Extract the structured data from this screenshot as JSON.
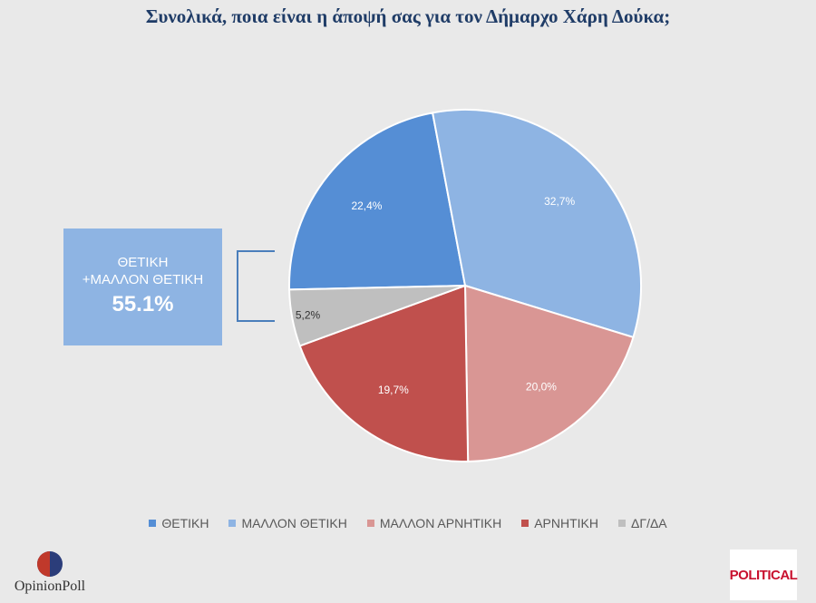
{
  "chart_data": {
    "type": "pie",
    "title": "Συνολικά, ποια είναι η άποψή σας για τον Δήμαρχο Χάρη Δούκα;",
    "slices": [
      {
        "name": "ΘΕΤΙΚΗ",
        "value": 22.4,
        "label": "22,4%",
        "color": "#558ed5"
      },
      {
        "name": "ΜΑΛΛΟΝ ΘΕΤΙΚΗ",
        "value": 32.7,
        "label": "32,7%",
        "color": "#8eb4e3"
      },
      {
        "name": "ΜΑΛΛΟΝ ΑΡΝΗΤΙΚΗ",
        "value": 20.0,
        "label": "20,0%",
        "color": "#d99694"
      },
      {
        "name": "ΑΡΝΗΤΙΚΗ",
        "value": 19.7,
        "label": "19,7%",
        "color": "#c0504d"
      },
      {
        "name": "ΔΓ/ΔΑ",
        "value": 5.2,
        "label": "5,2%",
        "color": "#bfbfbf"
      }
    ],
    "legend_position": "bottom",
    "annotation": {
      "label": "ΘΕΤΙΚΗ\n+ΜΑΛΛΟΝ ΘΕΤΙΚΗ",
      "value": "55.1%"
    }
  },
  "logos": {
    "left": "OpinionPoll",
    "right": "POLITICAL"
  }
}
